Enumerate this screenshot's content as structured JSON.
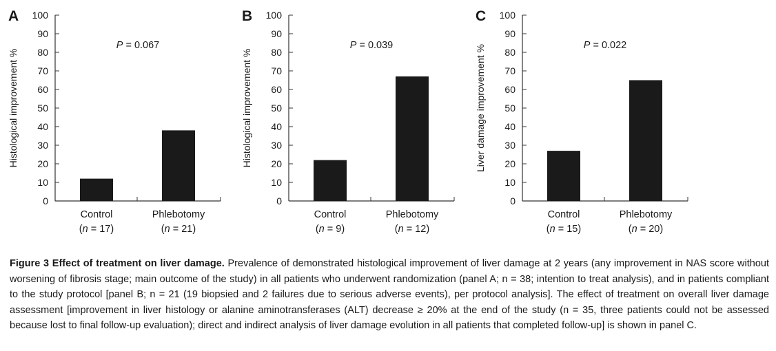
{
  "chart_data": [
    {
      "type": "bar",
      "panel_label": "A",
      "ylabel": "Histological improvement %",
      "ylim": [
        0,
        100
      ],
      "yticks": [
        0,
        10,
        20,
        30,
        40,
        50,
        60,
        70,
        80,
        90,
        100
      ],
      "categories": [
        "Control",
        "Phlebotomy"
      ],
      "category_n": [
        "(n = 17)",
        "(n = 21)"
      ],
      "values": [
        12,
        38
      ],
      "annotation": "P = 0.067",
      "bar_color": "#1a1a1a"
    },
    {
      "type": "bar",
      "panel_label": "B",
      "ylabel": "Histological improvement %",
      "ylim": [
        0,
        100
      ],
      "yticks": [
        0,
        10,
        20,
        30,
        40,
        50,
        60,
        70,
        80,
        90,
        100
      ],
      "categories": [
        "Control",
        "Phlebotomy"
      ],
      "category_n": [
        "(n = 9)",
        "(n = 12)"
      ],
      "values": [
        22,
        67
      ],
      "annotation": "P = 0.039",
      "bar_color": "#1a1a1a"
    },
    {
      "type": "bar",
      "panel_label": "C",
      "ylabel": "Liver damage improvement %",
      "ylim": [
        0,
        100
      ],
      "yticks": [
        0,
        10,
        20,
        30,
        40,
        50,
        60,
        70,
        80,
        90,
        100
      ],
      "categories": [
        "Control",
        "Phlebotomy"
      ],
      "category_n": [
        "(n = 15)",
        "(n = 20)"
      ],
      "values": [
        27,
        65
      ],
      "annotation": "P = 0.022",
      "bar_color": "#1a1a1a"
    }
  ],
  "caption": {
    "heading": "Figure 3  Effect of treatment on liver damage.",
    "text": "Prevalence of demonstrated histological improvement of liver damage at 2 years (any improvement in NAS score without worsening of fibrosis stage; main outcome of the study) in all patients who underwent randomization (panel A; n = 38; intention to treat analysis), and in patients compliant to the study protocol [panel B; n = 21 (19 biopsied and 2 failures due to serious adverse events), per protocol analysis]. The effect of treatment on overall liver damage assessment [improvement in liver histology or alanine aminotransferases (ALT) decrease ≥ 20% at the end of the study (n = 35, three patients could not be assessed because lost to final follow-up evaluation); direct and indirect analysis of liver damage evolution in all patients that completed follow-up] is shown in panel C."
  }
}
